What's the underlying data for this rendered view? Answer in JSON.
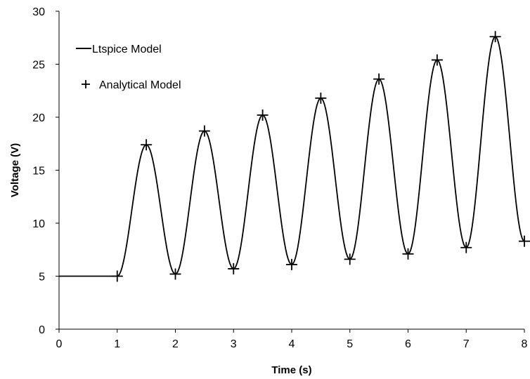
{
  "chart_data": {
    "type": "line",
    "title": "",
    "xlabel": "Time (s)",
    "ylabel": "Voltage (V)",
    "xlim": [
      0,
      8
    ],
    "ylim": [
      0,
      30
    ],
    "xticks": [
      0,
      1,
      2,
      3,
      4,
      5,
      6,
      7,
      8
    ],
    "yticks": [
      0,
      5,
      10,
      15,
      20,
      25,
      30
    ],
    "grid": false,
    "legend_position": "top-left",
    "series": [
      {
        "name": "Ltspice Model",
        "style": "line",
        "color": "#000000",
        "x": [
          0,
          1,
          1.5,
          2,
          2.5,
          3,
          3.5,
          4,
          4.5,
          5,
          5.5,
          6,
          6.5,
          7,
          7.5,
          8
        ],
        "values": [
          5.0,
          5.0,
          17.4,
          5.2,
          18.7,
          5.7,
          20.2,
          6.1,
          21.8,
          6.6,
          23.6,
          7.1,
          25.4,
          7.7,
          27.6,
          8.3
        ]
      },
      {
        "name": "Analytical Model",
        "style": "marker",
        "marker": "plus",
        "color": "#000000",
        "x": [
          1,
          1.5,
          2,
          2.5,
          3,
          3.5,
          4,
          4.5,
          5,
          5.5,
          6,
          6.5,
          7,
          7.5,
          8
        ],
        "values": [
          5.0,
          17.4,
          5.2,
          18.7,
          5.7,
          20.2,
          6.1,
          21.8,
          6.6,
          23.6,
          7.1,
          25.4,
          7.7,
          27.6,
          8.3
        ]
      }
    ]
  }
}
